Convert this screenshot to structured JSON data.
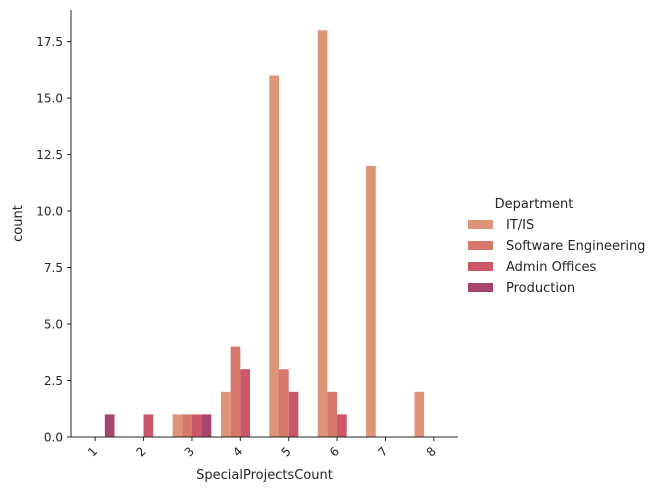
{
  "chart_data": {
    "type": "bar",
    "title": "",
    "xlabel": "SpecialProjectsCount",
    "ylabel": "count",
    "categories": [
      "1",
      "2",
      "3",
      "4",
      "5",
      "6",
      "7",
      "8"
    ],
    "ylim": [
      0,
      18.9
    ],
    "yticks": [
      0,
      2.5,
      5,
      7.5,
      10,
      12.5,
      15,
      17.5
    ],
    "ytick_labels": [
      "0.0",
      "2.5",
      "5.0",
      "7.5",
      "10.0",
      "12.5",
      "15.0",
      "17.5"
    ],
    "grid": false,
    "legend": {
      "title": "Department",
      "placement": "right"
    },
    "series": [
      {
        "name": "IT/IS",
        "color": "#de9478",
        "values": [
          0,
          0,
          1,
          2,
          16,
          18,
          12,
          2
        ]
      },
      {
        "name": "Software Engineering",
        "color": "#d8776b",
        "values": [
          0,
          0,
          1,
          4,
          3,
          2,
          0,
          0
        ]
      },
      {
        "name": "Admin Offices",
        "color": "#cc5769",
        "values": [
          0,
          1,
          1,
          3,
          2,
          1,
          0,
          0
        ]
      },
      {
        "name": "Production",
        "color": "#a8456c",
        "values": [
          1,
          0,
          1,
          0,
          0,
          0,
          0,
          0
        ]
      }
    ]
  }
}
